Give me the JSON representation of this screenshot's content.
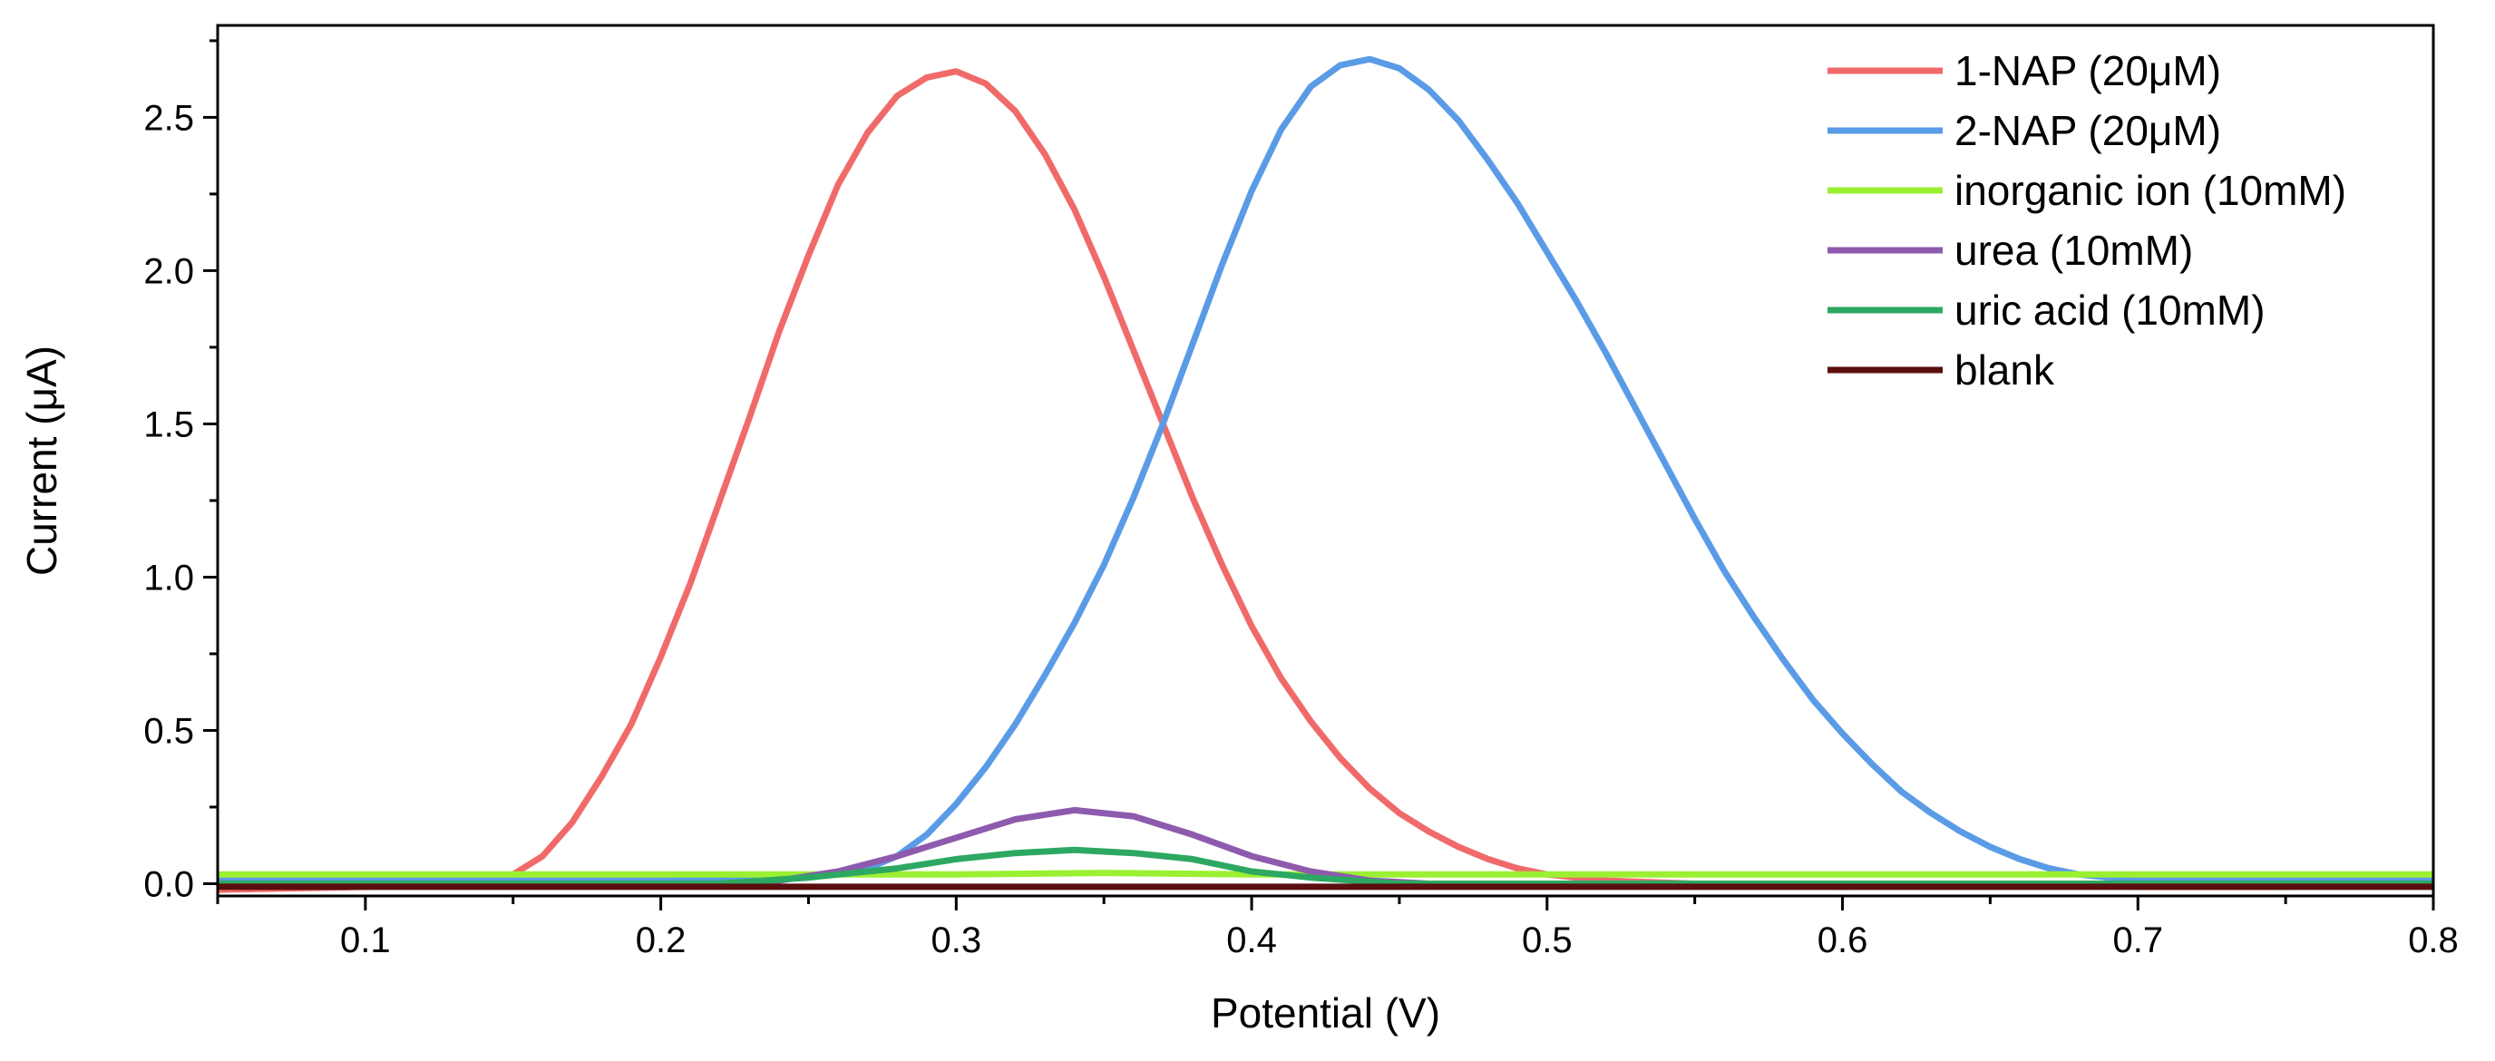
{
  "chart_data": {
    "type": "line",
    "title": "",
    "xlabel": "Potential (V)",
    "ylabel": "Current (μA)",
    "xlim": [
      0.05,
      0.8
    ],
    "ylim": [
      -0.04,
      2.8
    ],
    "xticks": [
      0.1,
      0.2,
      0.3,
      0.4,
      0.5,
      0.6,
      0.7,
      0.8
    ],
    "xtick_labels": [
      "0.1",
      "0.2",
      "0.3",
      "0.4",
      "0.5",
      "0.6",
      "0.7",
      "0.8"
    ],
    "yticks": [
      0.0,
      0.5,
      1.0,
      1.5,
      2.0,
      2.5
    ],
    "ytick_labels": [
      "0.0",
      "0.5",
      "1.0",
      "1.5",
      "2.0",
      "2.5"
    ],
    "grid": false,
    "legend_position": "top-right",
    "series": [
      {
        "name": "1-NAP (20μM)",
        "color": "#F06A6A",
        "x": [
          0.05,
          0.1,
          0.13,
          0.15,
          0.16,
          0.17,
          0.18,
          0.19,
          0.2,
          0.21,
          0.22,
          0.23,
          0.24,
          0.25,
          0.26,
          0.27,
          0.28,
          0.29,
          0.3,
          0.31,
          0.32,
          0.33,
          0.34,
          0.35,
          0.36,
          0.37,
          0.38,
          0.39,
          0.4,
          0.41,
          0.42,
          0.43,
          0.44,
          0.45,
          0.46,
          0.47,
          0.48,
          0.49,
          0.5,
          0.52,
          0.55,
          0.6,
          0.65,
          0.7,
          0.75,
          0.8
        ],
        "y": [
          -0.02,
          -0.01,
          0.0,
          0.03,
          0.09,
          0.2,
          0.35,
          0.52,
          0.74,
          0.98,
          1.25,
          1.52,
          1.8,
          2.05,
          2.28,
          2.45,
          2.57,
          2.63,
          2.65,
          2.61,
          2.52,
          2.38,
          2.2,
          1.98,
          1.74,
          1.5,
          1.26,
          1.04,
          0.84,
          0.67,
          0.53,
          0.41,
          0.31,
          0.23,
          0.17,
          0.12,
          0.08,
          0.05,
          0.03,
          0.01,
          0.0,
          -0.01,
          0.0,
          -0.01,
          -0.01,
          0.0
        ]
      },
      {
        "name": "2-NAP (20μM)",
        "color": "#5A9BE6",
        "x": [
          0.05,
          0.1,
          0.2,
          0.25,
          0.27,
          0.28,
          0.29,
          0.3,
          0.31,
          0.32,
          0.33,
          0.34,
          0.35,
          0.36,
          0.37,
          0.38,
          0.39,
          0.4,
          0.41,
          0.42,
          0.43,
          0.44,
          0.45,
          0.46,
          0.47,
          0.48,
          0.49,
          0.5,
          0.51,
          0.52,
          0.53,
          0.54,
          0.55,
          0.56,
          0.57,
          0.58,
          0.59,
          0.6,
          0.61,
          0.62,
          0.63,
          0.64,
          0.65,
          0.66,
          0.67,
          0.68,
          0.69,
          0.7,
          0.72,
          0.75,
          0.8
        ],
        "y": [
          0.01,
          0.01,
          0.01,
          0.02,
          0.05,
          0.09,
          0.16,
          0.26,
          0.38,
          0.52,
          0.68,
          0.85,
          1.04,
          1.26,
          1.5,
          1.76,
          2.02,
          2.26,
          2.46,
          2.6,
          2.67,
          2.69,
          2.66,
          2.59,
          2.49,
          2.36,
          2.22,
          2.06,
          1.9,
          1.73,
          1.55,
          1.37,
          1.19,
          1.02,
          0.87,
          0.73,
          0.6,
          0.49,
          0.39,
          0.3,
          0.23,
          0.17,
          0.12,
          0.08,
          0.05,
          0.03,
          0.02,
          0.01,
          0.01,
          0.01,
          0.01
        ]
      },
      {
        "name": "inorganic ion (10mM)",
        "color": "#9BF032",
        "x": [
          0.05,
          0.2,
          0.3,
          0.35,
          0.4,
          0.5,
          0.6,
          0.7,
          0.8
        ],
        "y": [
          0.03,
          0.03,
          0.03,
          0.035,
          0.03,
          0.03,
          0.03,
          0.03,
          0.03
        ]
      },
      {
        "name": "urea (10mM)",
        "color": "#8E5AAE",
        "x": [
          0.05,
          0.22,
          0.24,
          0.26,
          0.28,
          0.3,
          0.32,
          0.34,
          0.36,
          0.38,
          0.4,
          0.42,
          0.44,
          0.46,
          0.5,
          0.8
        ],
        "y": [
          0.0,
          0.0,
          0.01,
          0.04,
          0.09,
          0.15,
          0.21,
          0.24,
          0.22,
          0.16,
          0.09,
          0.04,
          0.01,
          0.0,
          0.0,
          0.0
        ]
      },
      {
        "name": "uric acid (10mM)",
        "color": "#2DA862",
        "x": [
          0.05,
          0.22,
          0.25,
          0.28,
          0.3,
          0.32,
          0.34,
          0.36,
          0.38,
          0.4,
          0.42,
          0.45,
          0.5,
          0.8
        ],
        "y": [
          0.0,
          0.0,
          0.02,
          0.05,
          0.08,
          0.1,
          0.11,
          0.1,
          0.08,
          0.04,
          0.02,
          0.0,
          0.0,
          0.0
        ]
      },
      {
        "name": "blank",
        "color": "#5A0E0E",
        "x": [
          0.05,
          0.3,
          0.5,
          0.8
        ],
        "y": [
          -0.01,
          -0.01,
          -0.01,
          -0.01
        ]
      }
    ]
  }
}
